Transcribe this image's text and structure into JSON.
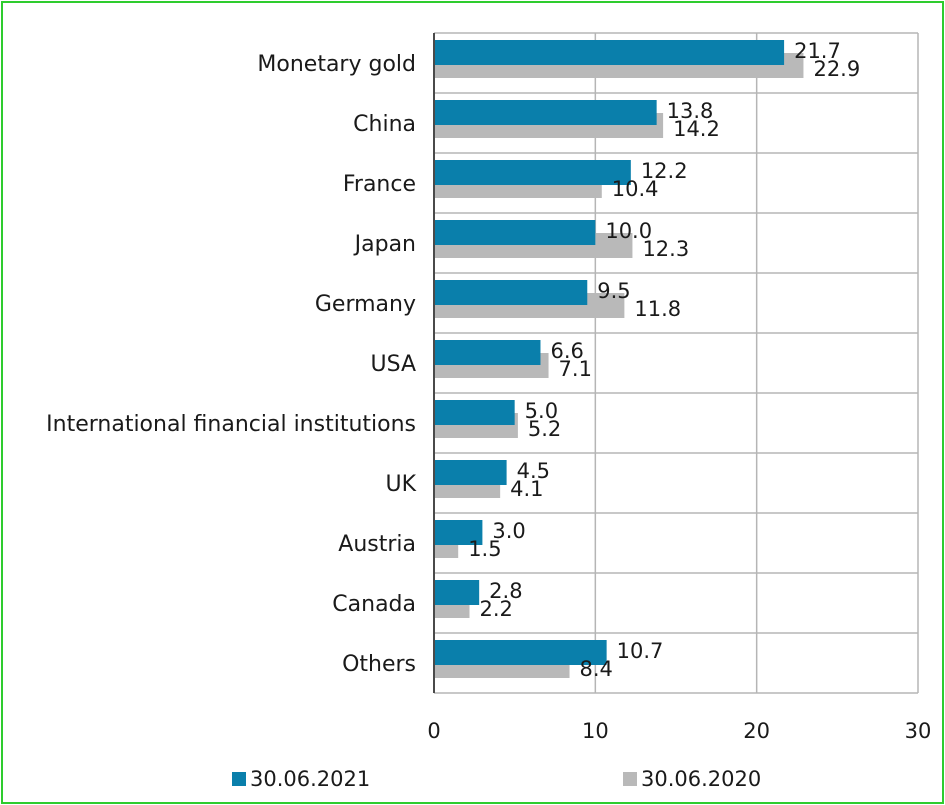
{
  "chart_data": {
    "type": "bar",
    "orientation": "horizontal",
    "categories": [
      "Monetary gold",
      "China",
      "France",
      "Japan",
      "Germany",
      "USA",
      "International financial institutions",
      "UK",
      "Austria",
      "Canada",
      "Others"
    ],
    "series": [
      {
        "name": "30.06.2021",
        "color": "#0a7fab",
        "values": [
          21.7,
          13.8,
          12.2,
          10.0,
          9.5,
          6.6,
          5.0,
          4.5,
          3.0,
          2.8,
          10.7
        ],
        "labels": [
          "21.7",
          "13.8",
          "12.2",
          "10.0",
          "9.5",
          "6.6",
          "5.0",
          "4.5",
          "3.0",
          "2.8",
          "10.7"
        ]
      },
      {
        "name": "30.06.2020",
        "color": "#b9b9b9",
        "values": [
          22.9,
          14.2,
          10.4,
          12.3,
          11.8,
          7.1,
          5.2,
          4.1,
          1.5,
          2.2,
          8.4
        ],
        "labels": [
          "22.9",
          "14.2",
          "10.4",
          "12.3",
          "11.8",
          "7.1",
          "5.2",
          "4.1",
          "1.5",
          "2.2",
          "8.4"
        ]
      }
    ],
    "xlim": [
      0,
      30
    ],
    "xticks": [
      "0",
      "10",
      "20",
      "30"
    ],
    "grid": true,
    "legend": "bottom",
    "title": "",
    "xlabel": "",
    "ylabel": ""
  }
}
